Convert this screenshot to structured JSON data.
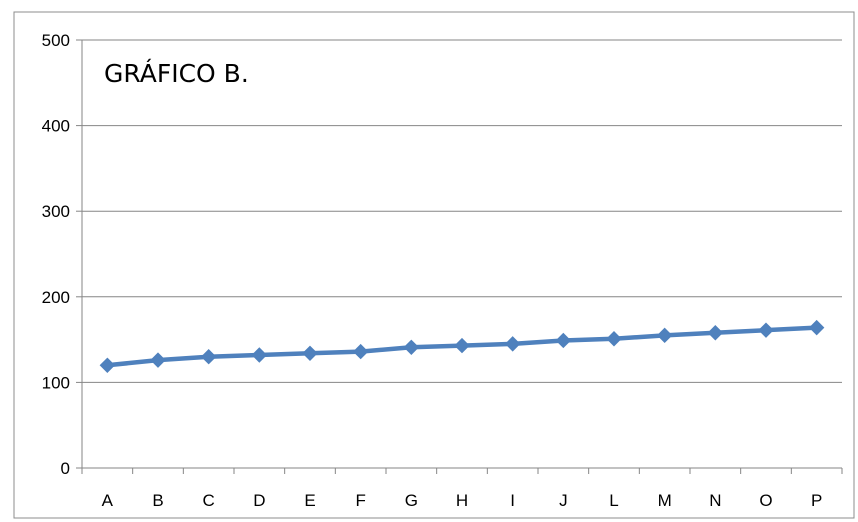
{
  "chart_data": {
    "type": "line",
    "title": "GRÁFICO B.",
    "xlabel": "",
    "ylabel": "",
    "categories": [
      "A",
      "B",
      "C",
      "D",
      "E",
      "F",
      "G",
      "H",
      "I",
      "J",
      "L",
      "M",
      "N",
      "O",
      "P"
    ],
    "series": [
      {
        "values": [
          120,
          126,
          130,
          132,
          134,
          136,
          141,
          143,
          145,
          149,
          151,
          155,
          158,
          161,
          164
        ],
        "color": "#4f81bd",
        "marker": "diamond"
      }
    ],
    "ylim": [
      0,
      500
    ],
    "yticks": [
      0,
      100,
      200,
      300,
      400,
      500
    ],
    "grid": true,
    "legend": "none"
  }
}
